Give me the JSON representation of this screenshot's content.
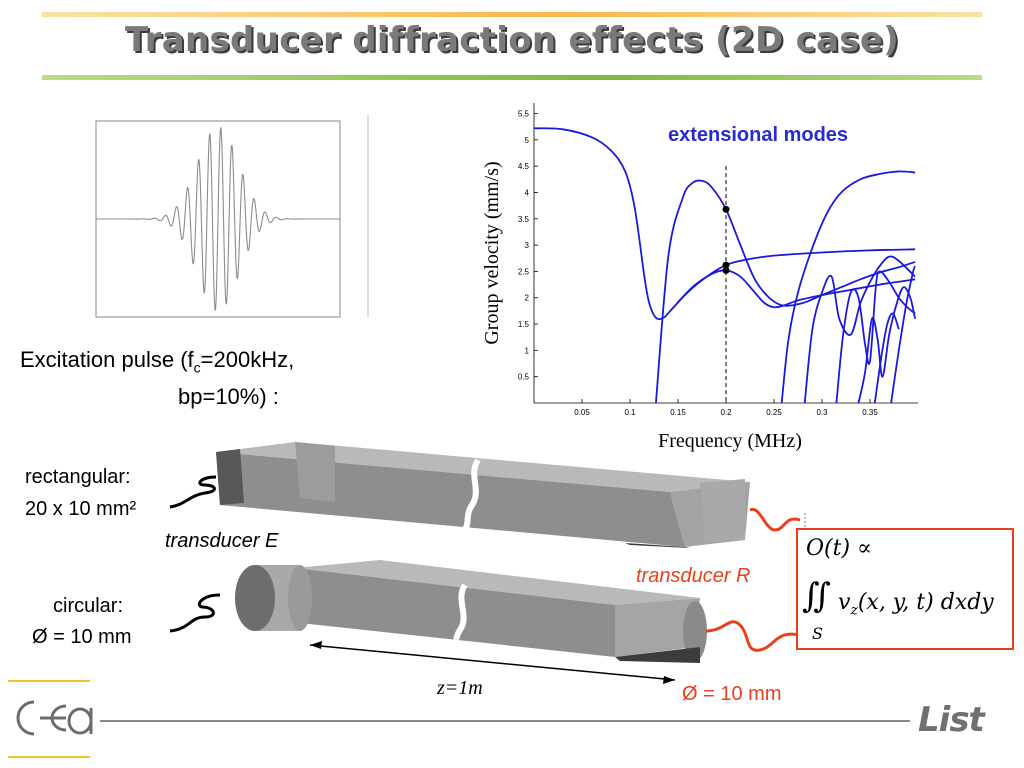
{
  "slide": {
    "title": "Transducer diffraction effects (2D case)",
    "colors": {
      "title_rule_top": "#f7c66b",
      "title_rule_bottom": "#92c24a",
      "accent_red": "#e8401c",
      "curve_blue": "#1a1adc",
      "footer_gold": "#f2c230"
    }
  },
  "pulse": {
    "caption_prefix": "Excitation pulse (f",
    "caption_sub": "c",
    "caption_suffix": "=200kHz,",
    "caption_line2": "bp=10%) :"
  },
  "chart_data": {
    "type": "line",
    "annotation": "extensional modes",
    "xlabel": "Frequency (MHz)",
    "ylabel": "Group velocity (mm/s)",
    "xlim": [
      0,
      0.4
    ],
    "ylim": [
      0,
      5.7
    ],
    "xticks": [
      "0.05",
      "0.1",
      "0.15",
      "0.2",
      "0.25",
      "0.3",
      "0.35"
    ],
    "yticks": [
      "0.5",
      "1",
      "1.5",
      "2",
      "2.5",
      "3",
      "3.5",
      "4",
      "4.5",
      "5",
      "5.5"
    ],
    "marker_frequency": 0.2,
    "marked_points": [
      {
        "x": 0.2,
        "y": 3.68
      },
      {
        "x": 0.2,
        "y": 2.62
      },
      {
        "x": 0.2,
        "y": 2.52
      }
    ],
    "series": [
      {
        "x": [
          0,
          0.03,
          0.06,
          0.08,
          0.095,
          0.105,
          0.115,
          0.12,
          0.127,
          0.135,
          0.142
        ],
        "y": [
          5.22,
          5.2,
          5.05,
          4.8,
          4.4,
          3.7,
          2.4,
          1.9,
          1.62,
          1.62,
          1.75
        ]
      },
      {
        "x": [
          0.127,
          0.14,
          0.155,
          0.165,
          0.175,
          0.185,
          0.2,
          0.215,
          0.23,
          0.245,
          0.26,
          0.28,
          0.3,
          0.32,
          0.34,
          0.36,
          0.38,
          0.397
        ],
        "y": [
          0.0,
          2.8,
          3.9,
          4.18,
          4.22,
          4.1,
          3.68,
          3.0,
          2.35,
          2.0,
          1.85,
          1.9,
          2.05,
          2.2,
          2.35,
          2.48,
          2.58,
          2.68
        ]
      },
      {
        "x": [
          0.142,
          0.16,
          0.18,
          0.2,
          0.22,
          0.25,
          0.3,
          0.35,
          0.397
        ],
        "y": [
          1.75,
          2.1,
          2.4,
          2.62,
          2.72,
          2.8,
          2.86,
          2.9,
          2.92
        ]
      },
      {
        "x": [
          0.142,
          0.165,
          0.185,
          0.2,
          0.215,
          0.23,
          0.24,
          0.25,
          0.26,
          0.275,
          0.3,
          0.33,
          0.36,
          0.397
        ],
        "y": [
          1.75,
          2.2,
          2.45,
          2.52,
          2.4,
          2.1,
          1.9,
          1.82,
          1.85,
          1.95,
          2.05,
          2.15,
          2.25,
          2.35
        ]
      },
      {
        "x": [
          0.258,
          0.265,
          0.275,
          0.29,
          0.305,
          0.32,
          0.34,
          0.36,
          0.38,
          0.397
        ],
        "y": [
          0.0,
          1.2,
          2.1,
          2.95,
          3.6,
          4.0,
          4.25,
          4.35,
          4.4,
          4.38
        ]
      },
      {
        "x": [
          0.282,
          0.29,
          0.3,
          0.31,
          0.318,
          0.33,
          0.34,
          0.35,
          0.36,
          0.37,
          0.38,
          0.397
        ],
        "y": [
          0.0,
          1.4,
          2.1,
          2.4,
          1.6,
          1.3,
          1.9,
          2.3,
          2.6,
          2.78,
          2.7,
          2.4
        ]
      },
      {
        "x": [
          0.315,
          0.322,
          0.33,
          0.338,
          0.345,
          0.35,
          0.356,
          0.36,
          0.37,
          0.38,
          0.39,
          0.397
        ],
        "y": [
          0.0,
          1.3,
          2.1,
          2.0,
          1.1,
          0.8,
          2.2,
          2.5,
          2.3,
          2.0,
          1.8,
          1.7
        ]
      },
      {
        "x": [
          0.338,
          0.345,
          0.352,
          0.358,
          0.363,
          0.37,
          0.378,
          0.385,
          0.392,
          0.397
        ],
        "y": [
          0.0,
          0.6,
          1.6,
          1.2,
          0.5,
          1.3,
          1.9,
          2.2,
          2.0,
          1.6
        ]
      },
      {
        "x": [
          0.372,
          0.38,
          0.388,
          0.395,
          0.397
        ],
        "y": [
          0.0,
          1.0,
          1.9,
          2.5,
          2.6
        ]
      },
      {
        "x": [
          0.355,
          0.362,
          0.368,
          0.374,
          0.38
        ],
        "y": [
          0.0,
          0.9,
          1.5,
          1.7,
          1.4
        ]
      }
    ]
  },
  "transducers": {
    "rect_label_1": "rectangular:",
    "rect_label_2": "20 x 10 mm²",
    "rect_name": "transducer E",
    "circ_label_1": "circular:",
    "circ_label_2": "Ø = 10 mm",
    "receiver_name": "transducer R",
    "distance_label": "z=1m",
    "receiver_diameter": "Ø = 10 mm"
  },
  "formula": {
    "line1": "O(t) ∝",
    "integral": "∬",
    "v": "v",
    "v_sub": "z",
    "args": "(x, y, t)  dxdy",
    "domain": "S"
  },
  "footer": {
    "left_logo_text": "cea",
    "right_logo_text": "List"
  }
}
